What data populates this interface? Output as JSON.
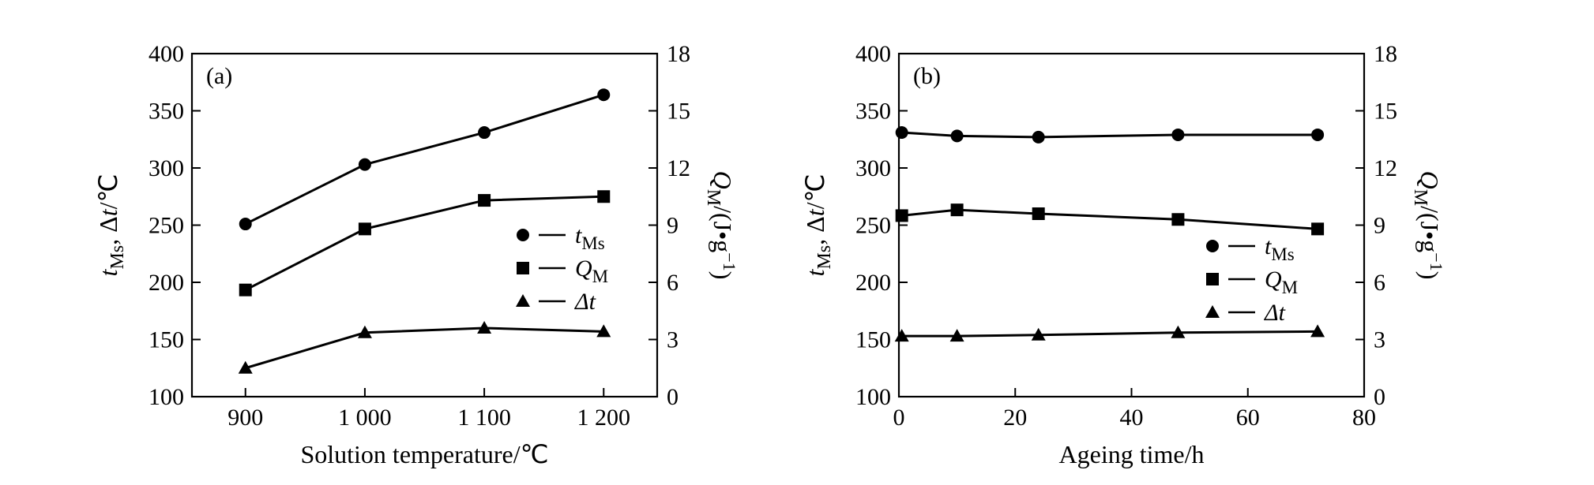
{
  "chart_data": [
    {
      "type": "line",
      "panel_label": "(a)",
      "xlabel": "Solution temperature/℃",
      "ylabel": {
        "t": "t",
        "t_sub": "Ms",
        "mid": ", Δ",
        "t2": "t",
        "unit": "/℃"
      },
      "y2label": {
        "q": "Q",
        "q_sub": "M",
        "unit": "/(J•g",
        "sup": "−1",
        "close": ")"
      },
      "x_scale": "categorical",
      "categories": [
        900,
        1000,
        1100,
        1200
      ],
      "x_tick_labels": [
        "900",
        "1 000",
        "1 100",
        "1 200"
      ],
      "ylim": [
        100,
        400
      ],
      "y_ticks": [
        100,
        150,
        200,
        250,
        300,
        350,
        400
      ],
      "y2lim": [
        0,
        18
      ],
      "y2_ticks": [
        0,
        3,
        6,
        9,
        12,
        15,
        18
      ],
      "grid": false,
      "legend_position": "middle-right",
      "series": [
        {
          "name": "tMs",
          "legend": {
            "t": "t",
            "sub": "Ms"
          },
          "marker": "circle",
          "axis": "left",
          "values": [
            251,
            303,
            331,
            364
          ]
        },
        {
          "name": "QM",
          "legend": {
            "t": "Q",
            "sub": "M"
          },
          "marker": "square",
          "axis": "right",
          "values": [
            5.6,
            8.8,
            10.3,
            10.5
          ]
        },
        {
          "name": "Δt",
          "legend": {
            "t": "Δt",
            "sub": ""
          },
          "marker": "triangle",
          "axis": "left",
          "values": [
            125,
            156,
            160,
            157
          ]
        }
      ]
    },
    {
      "type": "line",
      "panel_label": "(b)",
      "xlabel": "Ageing time/h",
      "ylabel": {
        "t": "t",
        "t_sub": "Ms",
        "mid": ", Δ",
        "t2": "t",
        "unit": "/℃"
      },
      "y2label": {
        "q": "Q",
        "q_sub": "M",
        "unit": "/(J•g",
        "sup": "−1",
        "close": ")"
      },
      "x_scale": "linear",
      "xlim": [
        0,
        80
      ],
      "x_ticks": [
        0,
        20,
        40,
        60,
        80
      ],
      "ylim": [
        100,
        400
      ],
      "y_ticks": [
        100,
        150,
        200,
        250,
        300,
        350,
        400
      ],
      "y2lim": [
        0,
        18
      ],
      "y2_ticks": [
        0,
        3,
        6,
        9,
        12,
        15,
        18
      ],
      "grid": false,
      "legend_position": "middle-right",
      "x": [
        0.5,
        10,
        24,
        48,
        72
      ],
      "series": [
        {
          "name": "tMs",
          "legend": {
            "t": "t",
            "sub": "Ms"
          },
          "marker": "circle",
          "axis": "left",
          "values": [
            331,
            328,
            327,
            329,
            329
          ]
        },
        {
          "name": "QM",
          "legend": {
            "t": "Q",
            "sub": "M"
          },
          "marker": "square",
          "axis": "right",
          "values": [
            9.5,
            9.8,
            9.6,
            9.3,
            8.8
          ]
        },
        {
          "name": "Δt",
          "legend": {
            "t": "Δt",
            "sub": ""
          },
          "marker": "triangle",
          "axis": "left",
          "values": [
            153,
            153,
            154,
            156,
            157
          ]
        }
      ]
    }
  ]
}
